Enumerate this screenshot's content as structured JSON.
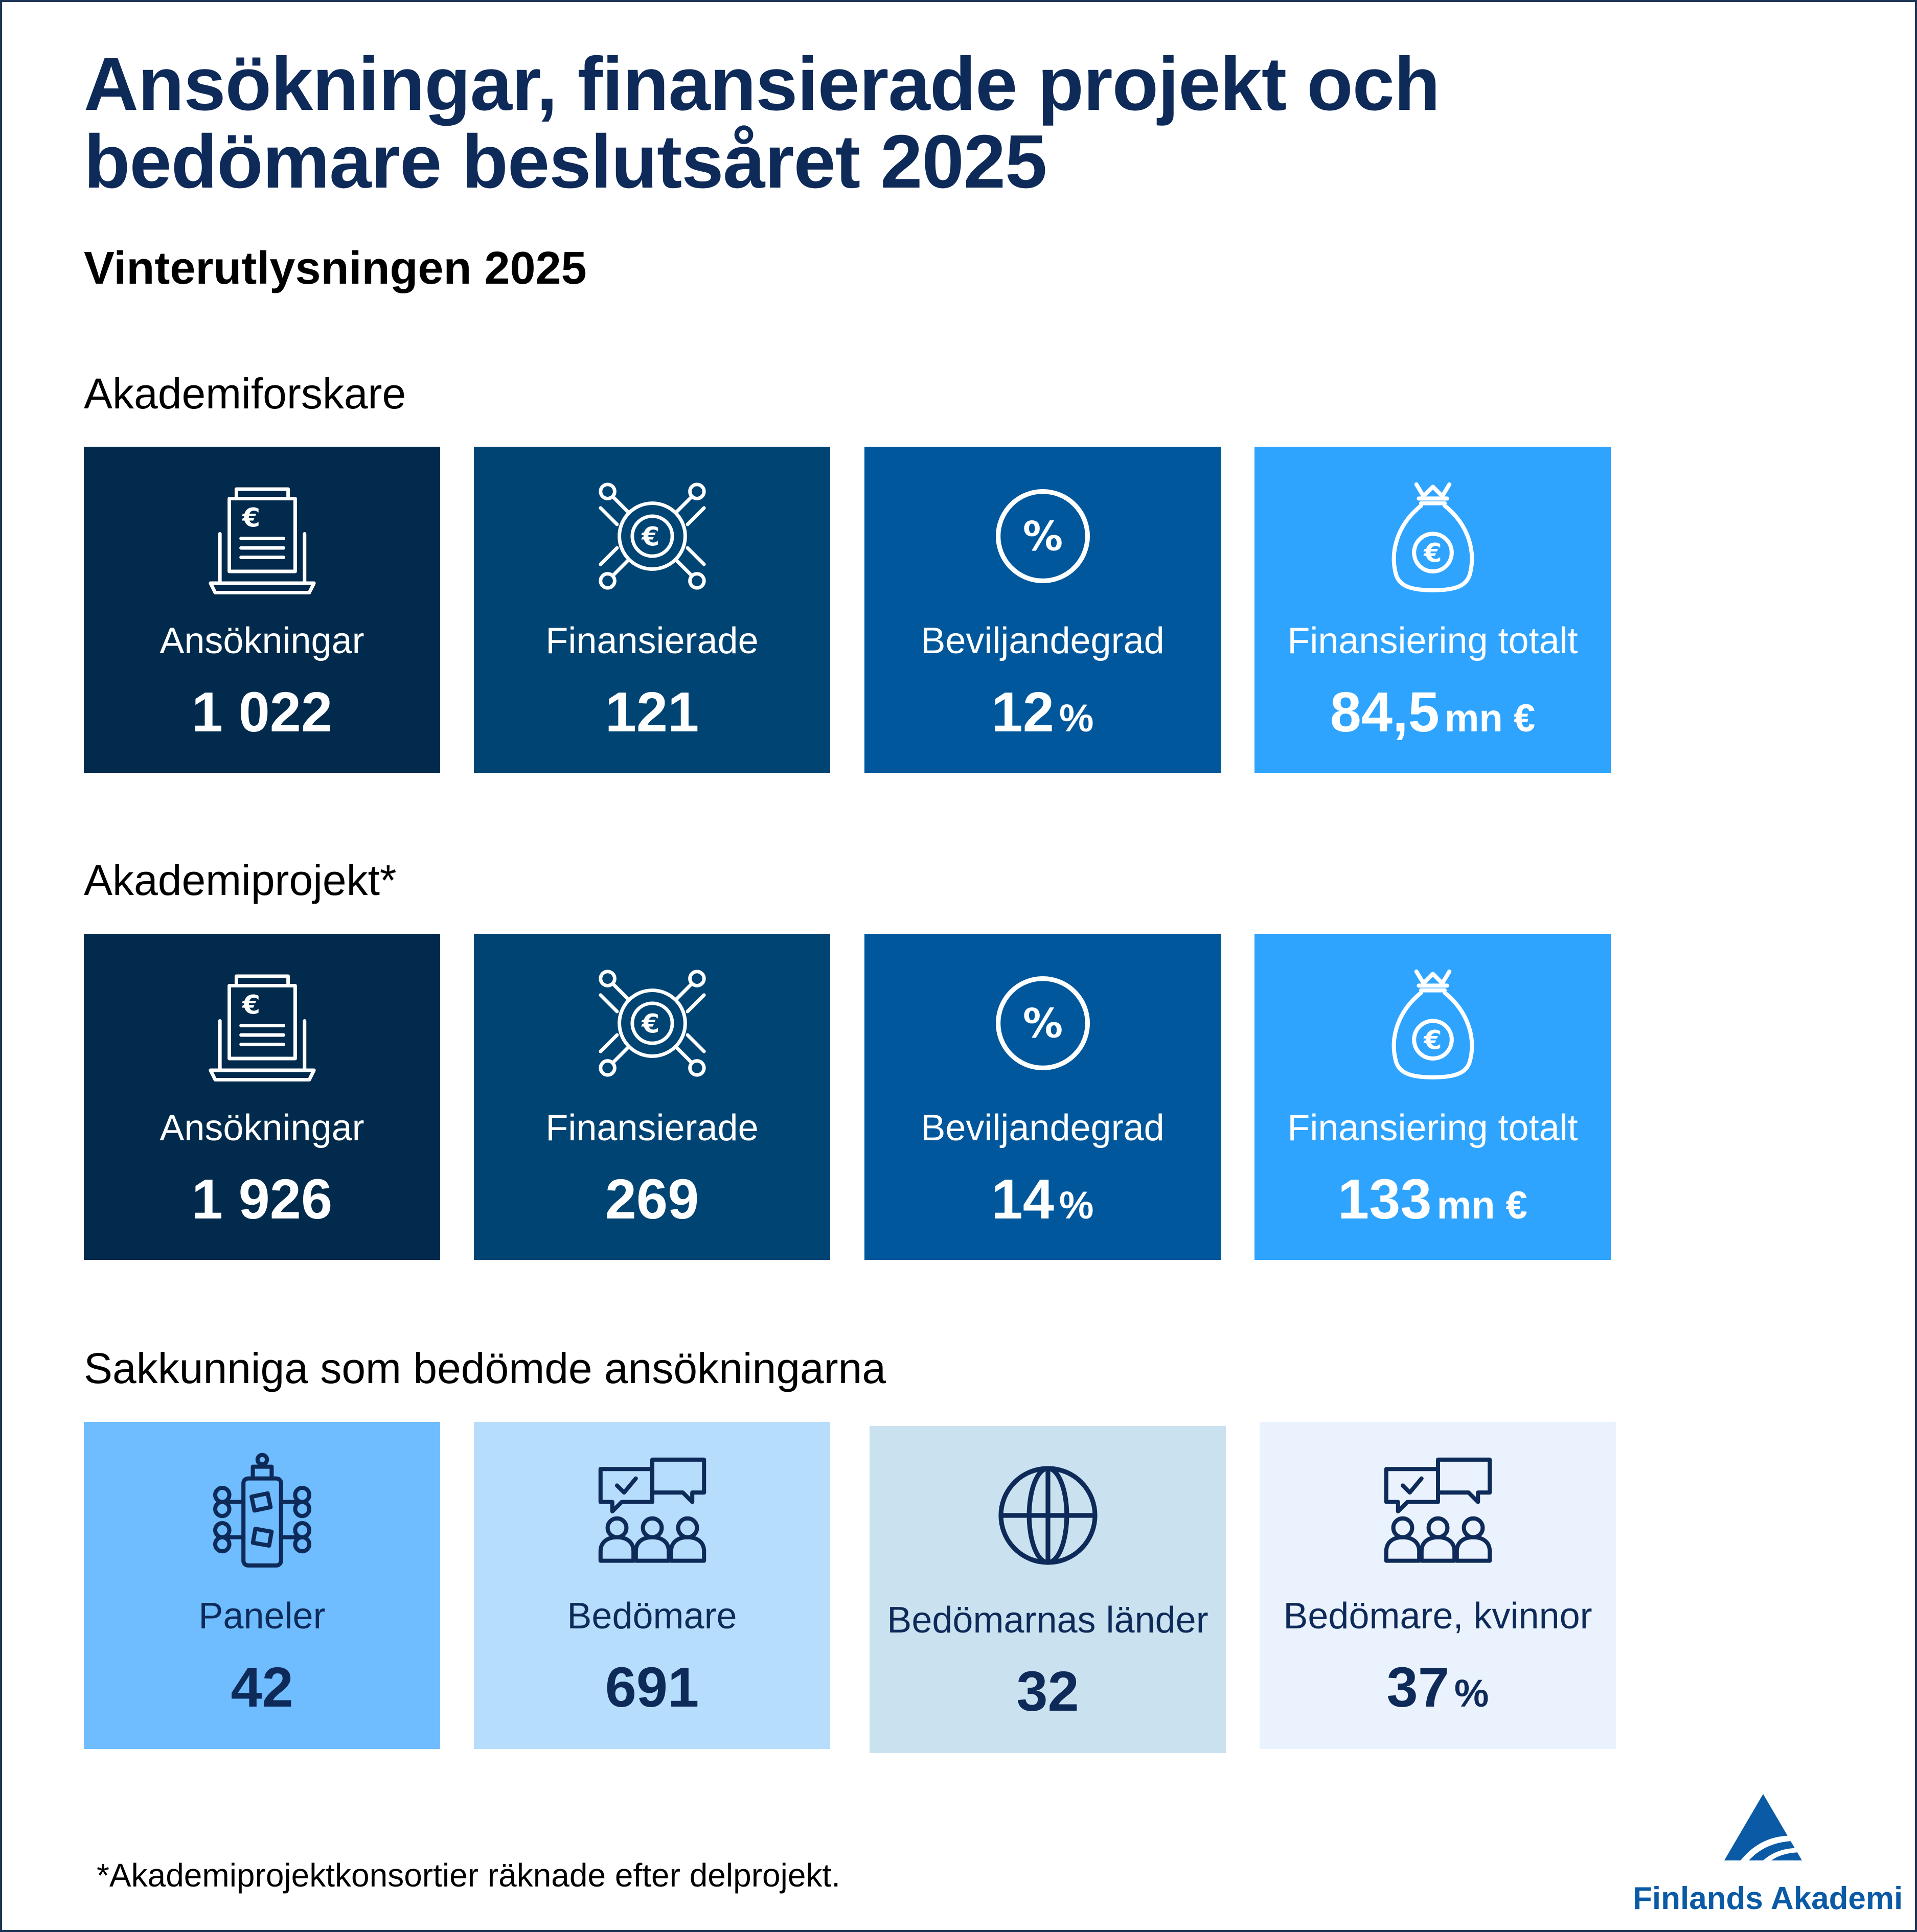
{
  "title": "Ansökningar, finansierade projekt och bedömare beslutsåret 2025",
  "subtitle": "Vinterutlysningen 2025",
  "sections": [
    {
      "label": "Akademiforskare",
      "tiles": [
        {
          "icon": "document-euro-laptop-icon",
          "label": "Ansökningar",
          "value": "1 022",
          "unit": ""
        },
        {
          "icon": "euro-coin-network-icon",
          "label": "Finansierade",
          "value": "121",
          "unit": ""
        },
        {
          "icon": "percent-circle-icon",
          "label": "Beviljandegrad",
          "value": "12",
          "unit": "%"
        },
        {
          "icon": "money-bag-euro-icon",
          "label": "Finansiering totalt",
          "value": "84,5",
          "unit": "mn €"
        }
      ]
    },
    {
      "label": "Akademiprojekt*",
      "tiles": [
        {
          "icon": "document-euro-laptop-icon",
          "label": "Ansökningar",
          "value": "1 926",
          "unit": ""
        },
        {
          "icon": "euro-coin-network-icon",
          "label": "Finansierade",
          "value": "269",
          "unit": ""
        },
        {
          "icon": "percent-circle-icon",
          "label": "Beviljandegrad",
          "value": "14",
          "unit": "%"
        },
        {
          "icon": "money-bag-euro-icon",
          "label": "Finansiering totalt",
          "value": "133",
          "unit": "mn €"
        }
      ]
    },
    {
      "label": "Sakkunniga som bedömde ansökningarna",
      "tiles": [
        {
          "icon": "panel-table-icon",
          "label": "Paneler",
          "value": "42",
          "unit": ""
        },
        {
          "icon": "people-chat-icon",
          "label": "Bedömare",
          "value": "691",
          "unit": ""
        },
        {
          "icon": "globe-icon",
          "label": "Bedömarnas länder",
          "value": "32",
          "unit": ""
        },
        {
          "icon": "people-chat-icon",
          "label": "Bedömare, kvinnor",
          "value": "37",
          "unit": "%"
        }
      ]
    }
  ],
  "footnote": "*Akademiprojektkonsortier räknade efter delprojekt.",
  "logo": {
    "text": "Finlands Akademi"
  },
  "colors": {
    "title": "#0e2a59",
    "tile_dark_1": "#012a4c",
    "tile_dark_2": "#004473",
    "tile_dark_3": "#00579c",
    "tile_bright": "#2ea4ff",
    "tile_panel_1": "#6fbcfe",
    "tile_panel_2": "#b6ddfc",
    "tile_panel_3": "#cae1f0",
    "tile_panel_4": "#eaf3fd",
    "logo": "#0a5aa6"
  }
}
